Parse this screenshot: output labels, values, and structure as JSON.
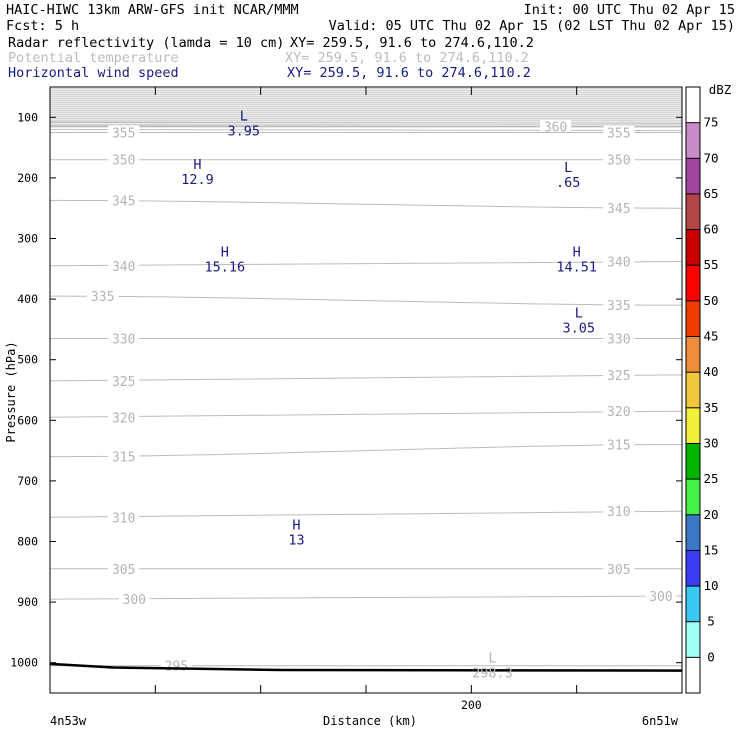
{
  "header": {
    "line1_left": "HAIC-HIWC 13km ARW-GFS init   NCAR/MMM",
    "line1_right": "Init: 00 UTC Thu 02 Apr 15",
    "line2_left": "Fcst:    5 h",
    "line2_right": "Valid: 05 UTC Thu 02 Apr 15 (02 LST Thu 02 Apr 15)",
    "fields": [
      {
        "name": "Radar reflectivity (lamda = 10 cm)",
        "xy": "XY= 259.5, 91.6 to 274.6,110.2",
        "color": "#000000"
      },
      {
        "name": "Potential temperature",
        "xy": "XY= 259.5, 91.6 to 274.6,110.2",
        "color": "#bcbcbc"
      },
      {
        "name": "Horizontal wind speed",
        "xy": "XY= 259.5, 91.6 to 274.6,110.2",
        "color": "#1a1a80"
      }
    ]
  },
  "chart_data": {
    "type": "cross-section",
    "ylabel": "Pressure (hPa)",
    "xlabel": "Distance (km)",
    "x_start_label": "4n53w",
    "x_end_label": "6n51w",
    "ylim": [
      1050,
      50
    ],
    "xlim": [
      0,
      300
    ],
    "yticks": [
      100,
      200,
      300,
      400,
      500,
      600,
      700,
      800,
      900,
      1000
    ],
    "xticks": [
      0,
      50,
      100,
      150,
      200,
      250,
      300
    ],
    "xtick_labels": [
      {
        "x": 200,
        "label": "200"
      }
    ],
    "theta_contours": [
      {
        "value": "360",
        "label_x": [
          240
        ],
        "label_p": [
          115
        ]
      },
      {
        "value": "355",
        "label_x": [
          35,
          270
        ],
        "label_p": [
          125,
          125
        ]
      },
      {
        "value": "350",
        "label_x": [
          35,
          270
        ],
        "label_p": [
          170,
          170
        ]
      },
      {
        "value": "345",
        "label_x": [
          35,
          270
        ],
        "label_p": [
          237,
          250
        ]
      },
      {
        "value": "340",
        "label_x": [
          35,
          270
        ],
        "label_p": [
          345,
          338
        ]
      },
      {
        "value": "335",
        "label_x": [
          25,
          270
        ],
        "label_p": [
          395,
          410
        ]
      },
      {
        "value": "330",
        "label_x": [
          35,
          270
        ],
        "label_p": [
          465,
          465
        ]
      },
      {
        "value": "325",
        "label_x": [
          35,
          270
        ],
        "label_p": [
          535,
          525
        ]
      },
      {
        "value": "320",
        "label_x": [
          35,
          270
        ],
        "label_p": [
          595,
          585
        ]
      },
      {
        "value": "315",
        "label_x": [
          35,
          270
        ],
        "label_p": [
          660,
          640
        ]
      },
      {
        "value": "310",
        "label_x": [
          35,
          270
        ],
        "label_p": [
          760,
          750
        ]
      },
      {
        "value": "305",
        "label_x": [
          35,
          270
        ],
        "label_p": [
          845,
          845
        ]
      },
      {
        "value": "300",
        "label_x": [
          40,
          290
        ],
        "label_p": [
          895,
          890
        ]
      },
      {
        "value": "295",
        "label_x": [
          60
        ],
        "label_p": [
          1005
        ]
      }
    ],
    "extrema": [
      {
        "type": "L",
        "value": "3.95",
        "x": 92,
        "p": 110
      },
      {
        "type": "H",
        "value": "12.9",
        "x": 70,
        "p": 190
      },
      {
        "type": "L",
        "value": ".65",
        "x": 246,
        "p": 195
      },
      {
        "type": "H",
        "value": "15.16",
        "x": 83,
        "p": 335
      },
      {
        "type": "H",
        "value": "14.51",
        "x": 250,
        "p": 335
      },
      {
        "type": "L",
        "value": "3.05",
        "x": 251,
        "p": 435
      },
      {
        "type": "H",
        "value": "13",
        "x": 117,
        "p": 785
      },
      {
        "type": "L",
        "value": "298.3",
        "x": 210,
        "p": 1005
      }
    ],
    "colorbar": {
      "unit": "dBZ",
      "levels": [
        0,
        5,
        10,
        15,
        20,
        25,
        30,
        35,
        40,
        45,
        50,
        55,
        60,
        65,
        70,
        75
      ],
      "colors": [
        "#ffffff",
        "#9ffff5",
        "#3cc8f5",
        "#3c3cf5",
        "#3c78c8",
        "#46f046",
        "#00b400",
        "#f0f03c",
        "#f0c83c",
        "#f08c3c",
        "#f03c00",
        "#ff0000",
        "#c80000",
        "#b44646",
        "#a046a0",
        "#c88cc8",
        "#ffffff"
      ]
    }
  }
}
